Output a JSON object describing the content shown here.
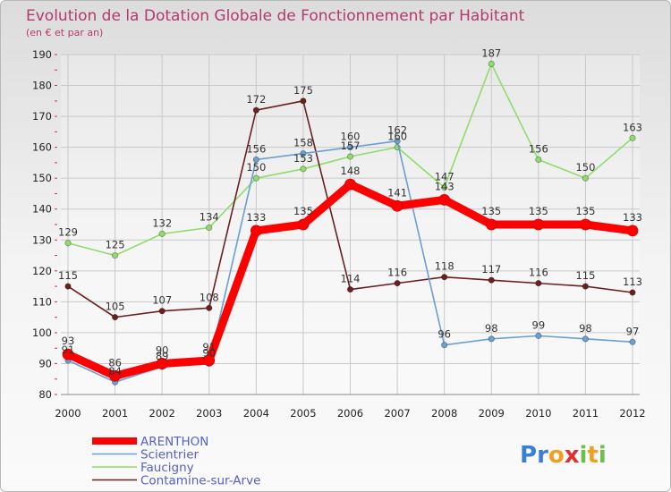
{
  "chart_data": {
    "type": "line",
    "title": "Evolution de la Dotation Globale de Fonctionnement par Habitant",
    "subtitle": "(en € et par an)",
    "xlabel": "",
    "ylabel": "",
    "categories": [
      "2000",
      "2001",
      "2002",
      "2003",
      "2004",
      "2005",
      "2006",
      "2007",
      "2008",
      "2009",
      "2010",
      "2011",
      "2012"
    ],
    "ylim": [
      80,
      190
    ],
    "yticks": [
      80,
      90,
      100,
      110,
      120,
      130,
      140,
      150,
      160,
      170,
      180,
      190
    ],
    "grid": true,
    "legend_position": "bottom-left",
    "series": [
      {
        "name": "ARENTHON",
        "color": "#ff0000",
        "values": [
          93,
          86,
          90,
          91,
          133,
          135,
          148,
          141,
          143,
          135,
          135,
          135,
          133
        ],
        "labels": [
          "93",
          "86",
          "90",
          "91",
          "133",
          "135",
          "148",
          "141",
          "143",
          "135",
          "135",
          "135",
          "133"
        ]
      },
      {
        "name": "Scientrier",
        "color": "#6a9fd4",
        "values": [
          91,
          84,
          89,
          90,
          156,
          158,
          160,
          162,
          96,
          98,
          99,
          98,
          97
        ],
        "labels": [
          "91",
          "84",
          "89",
          "90",
          "156",
          "158",
          "160",
          "162",
          "96",
          "98",
          "99",
          "98",
          "97"
        ]
      },
      {
        "name": "Faucigny",
        "color": "#8fdc6a",
        "values": [
          129,
          125,
          132,
          134,
          150,
          153,
          157,
          160,
          147,
          187,
          156,
          150,
          163
        ],
        "labels": [
          "129",
          "125",
          "132",
          "134",
          "150",
          "153",
          "157",
          "160",
          "147",
          "187",
          "156",
          "150",
          "163"
        ]
      },
      {
        "name": "Contamine-sur-Arve",
        "color": "#6b1f1f",
        "values": [
          115,
          105,
          107,
          108,
          172,
          175,
          114,
          116,
          118,
          117,
          116,
          115,
          113
        ],
        "labels": [
          "115",
          "105",
          "107",
          "108",
          "172",
          "175",
          "114",
          "116",
          "118",
          "117",
          "116",
          "115",
          "113"
        ]
      }
    ]
  },
  "logo": {
    "text": "Proxiti",
    "letters": [
      "P",
      "r",
      "o",
      "x",
      "i",
      "t",
      "i"
    ],
    "colors": [
      "#3a7fd6",
      "#3a7fd6",
      "#f0a020",
      "#e03030",
      "#6cc04a",
      "#f0a020",
      "#6cc04a"
    ]
  }
}
